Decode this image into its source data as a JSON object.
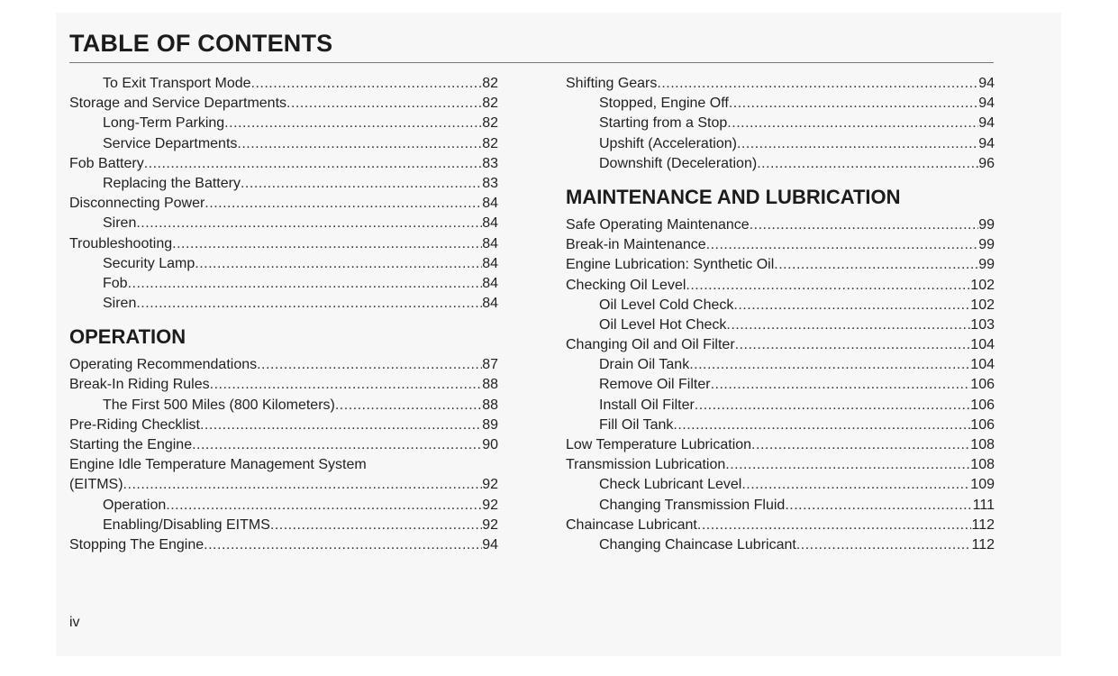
{
  "title": "TABLE OF CONTENTS",
  "folio": "iv",
  "left": [
    {
      "text": "To Exit Transport Mode",
      "page": "82",
      "indent": true
    },
    {
      "text": "Storage and Service Departments",
      "page": "82",
      "indent": false
    },
    {
      "text": "Long-Term Parking",
      "page": "82",
      "indent": true
    },
    {
      "text": "Service Departments",
      "page": "82",
      "indent": true
    },
    {
      "text": "Fob Battery",
      "page": "83",
      "indent": false
    },
    {
      "text": "Replacing the Battery",
      "page": "83",
      "indent": true
    },
    {
      "text": "Disconnecting Power",
      "page": "84",
      "indent": false
    },
    {
      "text": "Siren",
      "page": "84",
      "indent": true
    },
    {
      "text": "Troubleshooting",
      "page": "84",
      "indent": false
    },
    {
      "text": "Security Lamp",
      "page": "84",
      "indent": true
    },
    {
      "text": "Fob",
      "page": "84",
      "indent": true
    },
    {
      "text": "Siren",
      "page": "84",
      "indent": true
    },
    {
      "heading": "OPERATION"
    },
    {
      "text": "Operating Recommendations",
      "page": "87",
      "indent": false
    },
    {
      "text": "Break-In Riding Rules",
      "page": "88",
      "indent": false
    },
    {
      "text": "The First 500 Miles (800 Kilometers)",
      "page": "88",
      "indent": true
    },
    {
      "text": "Pre-Riding Checklist",
      "page": "89",
      "indent": false
    },
    {
      "text": "Starting the Engine",
      "page": "90",
      "indent": false
    },
    {
      "text": "Engine Idle Temperature Management System",
      "page": "",
      "indent": false,
      "noleader": true
    },
    {
      "text": "(EITMS)",
      "page": "92",
      "indent": false
    },
    {
      "text": "Operation",
      "page": "92",
      "indent": true
    },
    {
      "text": "Enabling/Disabling EITMS",
      "page": "92",
      "indent": true
    },
    {
      "text": "Stopping The Engine",
      "page": "94",
      "indent": false
    }
  ],
  "right": [
    {
      "text": "Shifting Gears",
      "page": "94",
      "indent": false
    },
    {
      "text": "Stopped, Engine Off",
      "page": "94",
      "indent": true
    },
    {
      "text": "Starting from a Stop",
      "page": "94",
      "indent": true
    },
    {
      "text": "Upshift (Acceleration)",
      "page": "94",
      "indent": true
    },
    {
      "text": "Downshift (Deceleration)",
      "page": "96",
      "indent": true
    },
    {
      "heading": "MAINTENANCE AND LUBRICATION"
    },
    {
      "text": "Safe Operating Maintenance",
      "page": "99",
      "indent": false
    },
    {
      "text": "Break-in Maintenance",
      "page": "99",
      "indent": false
    },
    {
      "text": "Engine Lubrication: Synthetic Oil",
      "page": "99",
      "indent": false
    },
    {
      "text": "Checking Oil Level",
      "page": "102",
      "indent": false
    },
    {
      "text": "Oil Level Cold Check",
      "page": "102",
      "indent": true
    },
    {
      "text": "Oil Level Hot Check",
      "page": "103",
      "indent": true
    },
    {
      "text": "Changing Oil and Oil Filter",
      "page": "104",
      "indent": false
    },
    {
      "text": "Drain Oil Tank",
      "page": "104",
      "indent": true
    },
    {
      "text": "Remove Oil Filter",
      "page": "106",
      "indent": true
    },
    {
      "text": "Install Oil Filter",
      "page": "106",
      "indent": true
    },
    {
      "text": "Fill Oil Tank",
      "page": "106",
      "indent": true
    },
    {
      "text": "Low Temperature Lubrication",
      "page": "108",
      "indent": false
    },
    {
      "text": "Transmission Lubrication",
      "page": "108",
      "indent": false
    },
    {
      "text": "Check Lubricant Level",
      "page": "109",
      "indent": true
    },
    {
      "text": "Changing Transmission Fluid",
      "page": "111",
      "indent": true
    },
    {
      "text": "Chaincase Lubricant",
      "page": "112",
      "indent": false
    },
    {
      "text": "Changing Chaincase Lubricant",
      "page": "112",
      "indent": true
    }
  ]
}
